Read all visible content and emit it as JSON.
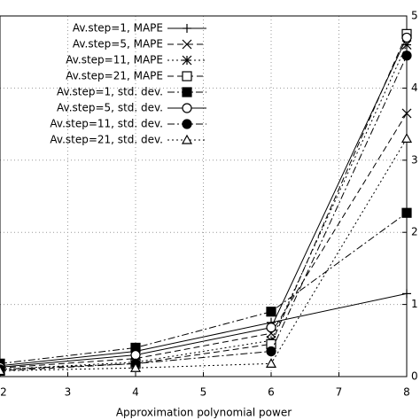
{
  "chart_data": {
    "type": "line",
    "xlabel": "Approximation polynomial power",
    "x": [
      2,
      4,
      6,
      8
    ],
    "xlim": [
      2,
      8
    ],
    "xticks": [
      2,
      3,
      4,
      5,
      6,
      7,
      8
    ],
    "ylim": [
      0,
      5
    ],
    "yticks": [
      0,
      1,
      2,
      3,
      4,
      5
    ],
    "grid": true,
    "legend": "upper left",
    "series": [
      {
        "name": "Av.step=1, MAPE",
        "color": "#000",
        "dash": "solid",
        "marker": "plus",
        "values": [
          0.15,
          0.35,
          0.75,
          1.15
        ]
      },
      {
        "name": "Av.step=5, MAPE",
        "color": "#000",
        "dash": "dashed",
        "marker": "x",
        "values": [
          0.12,
          0.25,
          0.6,
          3.65
        ]
      },
      {
        "name": "Av.step=11, MAPE",
        "color": "#000",
        "dash": "dotted",
        "marker": "star",
        "values": [
          0.1,
          0.2,
          0.5,
          4.6
        ]
      },
      {
        "name": "Av.step=21, MAPE",
        "color": "#000",
        "dash": "dashed",
        "marker": "square-open",
        "values": [
          0.08,
          0.18,
          0.45,
          4.75
        ]
      },
      {
        "name": "Av.step=1, std. dev.",
        "color": "#000",
        "dash": "dashdot",
        "marker": "square-filled",
        "values": [
          0.18,
          0.4,
          0.9,
          2.27
        ]
      },
      {
        "name": "Av.step=5, std. dev.",
        "color": "#000",
        "dash": "solid",
        "marker": "circle-open",
        "values": [
          0.13,
          0.3,
          0.68,
          4.7
        ]
      },
      {
        "name": "Av.step=11, std. dev.",
        "color": "#000",
        "dash": "dashdot",
        "marker": "circle-filled",
        "values": [
          0.1,
          0.18,
          0.35,
          4.45
        ]
      },
      {
        "name": "Av.step=21, std. dev.",
        "color": "#000",
        "dash": "dotted",
        "marker": "triangle-open",
        "values": [
          0.08,
          0.12,
          0.18,
          3.3
        ]
      }
    ]
  }
}
